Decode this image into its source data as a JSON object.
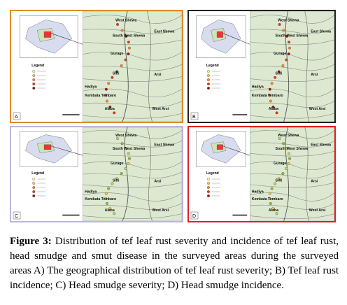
{
  "panels": [
    {
      "label": "A",
      "legend": "Legend",
      "regions": [
        "West Shewa",
        "South West Shewa",
        "East Shewa",
        "Gurage",
        "Silti",
        "Hadiya",
        "Kembata Tembaro",
        "Alaba",
        "Arsi",
        "West Arsi"
      ]
    },
    {
      "label": "B",
      "legend": "Legend",
      "regions": [
        "West Shewa",
        "South West Shewa",
        "East Shewa",
        "Gurage",
        "Silti",
        "Hadiya",
        "Kembata Tembaro",
        "Alaba",
        "Arsi",
        "West Arsi"
      ]
    },
    {
      "label": "C",
      "legend": "Legend",
      "regions": [
        "West Shewa",
        "South West Shewa",
        "East Shewa",
        "Gurage",
        "Silti",
        "Hadiya",
        "Kembata Tembaro",
        "Alaba",
        "Arsi",
        "West Arsi"
      ]
    },
    {
      "label": "D",
      "legend": "Legend",
      "regions": [
        "West Shewa",
        "South West Shewa",
        "East Shewa",
        "Gurage",
        "Silti",
        "Hadiya",
        "Kembata Tembaro",
        "Alaba",
        "Arsi",
        "West Arsi"
      ]
    }
  ],
  "caption": {
    "lead": "Figure 3:",
    "text": "Distribution of tef leaf rust severity and incidence of tef leaf rust, head smudge and smut disease in the surveyed areas during the surveyed areas A) The geographical distribution of tef leaf rust severity; B) Tef leaf rust incidence; C) Head smudge severity; D) Head smudge incidence."
  }
}
